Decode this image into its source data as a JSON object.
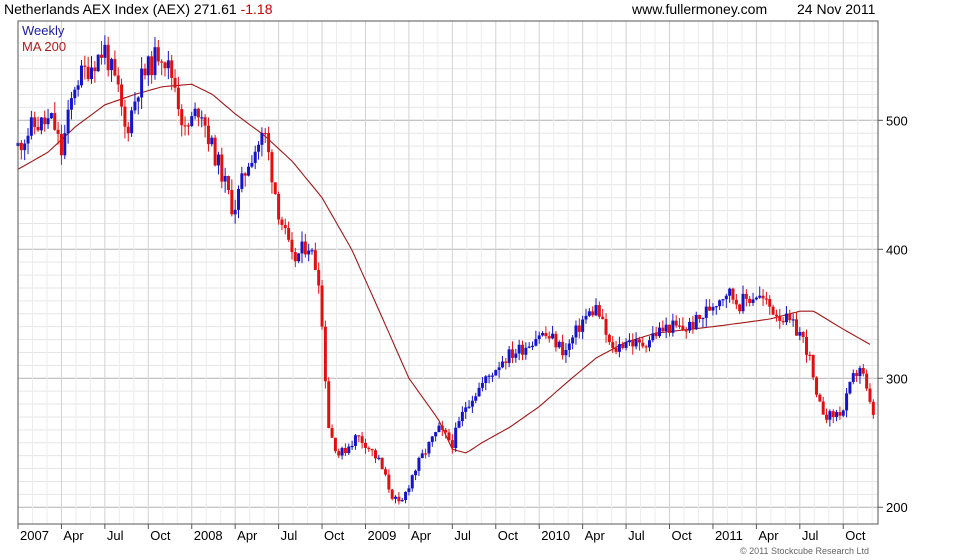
{
  "header": {
    "title": "Netherlands AEX Index (AEX) 271.61",
    "change": "-1.18",
    "site": "www.fullermoney.com",
    "date": "24 Nov 2011"
  },
  "copyright": "© 2011 Stockcube Research Ltd",
  "colors": {
    "up": "#1515c8",
    "down": "#e01010",
    "ma": "#a01818",
    "grid": "#c8c8c8",
    "legend_weekly": "#1c1caa",
    "legend_ma": "#b01c1c"
  },
  "chart_data": {
    "type": "candlestick",
    "title": "Netherlands AEX Index (AEX)",
    "last": 271.61,
    "change": -1.18,
    "legend": [
      "Weekly",
      "MA 200"
    ],
    "legend_position": "top-left",
    "grid": true,
    "x_range": [
      2007.0,
      2011.95
    ],
    "ylim": [
      187,
      577
    ],
    "y_ticks": [
      200,
      300,
      400,
      500
    ],
    "y_tick_labels": [
      "200",
      "300",
      "400",
      "500"
    ],
    "x_ticks": [
      {
        "t": 2007.0,
        "label": "2007"
      },
      {
        "t": 2007.25,
        "label": "Apr"
      },
      {
        "t": 2007.5,
        "label": "Jul"
      },
      {
        "t": 2007.75,
        "label": "Oct"
      },
      {
        "t": 2008.0,
        "label": "2008"
      },
      {
        "t": 2008.25,
        "label": "Apr"
      },
      {
        "t": 2008.5,
        "label": "Jul"
      },
      {
        "t": 2008.75,
        "label": "Oct"
      },
      {
        "t": 2009.0,
        "label": "2009"
      },
      {
        "t": 2009.25,
        "label": "Apr"
      },
      {
        "t": 2009.5,
        "label": "Jul"
      },
      {
        "t": 2009.75,
        "label": "Oct"
      },
      {
        "t": 2010.0,
        "label": "2010"
      },
      {
        "t": 2010.25,
        "label": "Apr"
      },
      {
        "t": 2010.5,
        "label": "Jul"
      },
      {
        "t": 2010.75,
        "label": "Oct"
      },
      {
        "t": 2011.0,
        "label": "2011"
      },
      {
        "t": 2011.25,
        "label": "Apr"
      },
      {
        "t": 2011.5,
        "label": "Jul"
      },
      {
        "t": 2011.75,
        "label": "Oct"
      }
    ],
    "price_path": [
      [
        2007.0,
        480
      ],
      [
        2007.08,
        495
      ],
      [
        2007.2,
        500
      ],
      [
        2007.25,
        475
      ],
      [
        2007.33,
        530
      ],
      [
        2007.5,
        555
      ],
      [
        2007.58,
        520
      ],
      [
        2007.62,
        490
      ],
      [
        2007.7,
        530
      ],
      [
        2007.82,
        555
      ],
      [
        2007.9,
        530
      ],
      [
        2007.96,
        490
      ],
      [
        2008.05,
        512
      ],
      [
        2008.1,
        485
      ],
      [
        2008.17,
        460
      ],
      [
        2008.24,
        430
      ],
      [
        2008.33,
        470
      ],
      [
        2008.42,
        490
      ],
      [
        2008.5,
        430
      ],
      [
        2008.58,
        390
      ],
      [
        2008.67,
        405
      ],
      [
        2008.73,
        380
      ],
      [
        2008.79,
        260
      ],
      [
        2008.85,
        240
      ],
      [
        2008.95,
        255
      ],
      [
        2009.0,
        250
      ],
      [
        2009.08,
        235
      ],
      [
        2009.15,
        210
      ],
      [
        2009.2,
        200
      ],
      [
        2009.27,
        225
      ],
      [
        2009.33,
        240
      ],
      [
        2009.42,
        260
      ],
      [
        2009.5,
        250
      ],
      [
        2009.58,
        280
      ],
      [
        2009.67,
        295
      ],
      [
        2009.79,
        315
      ],
      [
        2009.92,
        325
      ],
      [
        2010.0,
        335
      ],
      [
        2010.08,
        330
      ],
      [
        2010.15,
        320
      ],
      [
        2010.25,
        345
      ],
      [
        2010.33,
        355
      ],
      [
        2010.42,
        320
      ],
      [
        2010.5,
        330
      ],
      [
        2010.58,
        325
      ],
      [
        2010.67,
        335
      ],
      [
        2010.75,
        340
      ],
      [
        2010.83,
        338
      ],
      [
        2010.92,
        345
      ],
      [
        2011.0,
        358
      ],
      [
        2011.08,
        368
      ],
      [
        2011.15,
        358
      ],
      [
        2011.25,
        365
      ],
      [
        2011.33,
        355
      ],
      [
        2011.42,
        345
      ],
      [
        2011.5,
        335
      ],
      [
        2011.55,
        320
      ],
      [
        2011.6,
        280
      ],
      [
        2011.67,
        270
      ],
      [
        2011.75,
        275
      ],
      [
        2011.8,
        298
      ],
      [
        2011.85,
        310
      ],
      [
        2011.9,
        280
      ],
      [
        2011.92,
        272
      ]
    ],
    "ma200_path": [
      [
        2007.0,
        462
      ],
      [
        2007.17,
        475
      ],
      [
        2007.33,
        495
      ],
      [
        2007.5,
        512
      ],
      [
        2007.67,
        520
      ],
      [
        2007.83,
        526
      ],
      [
        2008.0,
        528
      ],
      [
        2008.12,
        520
      ],
      [
        2008.25,
        505
      ],
      [
        2008.42,
        488
      ],
      [
        2008.58,
        468
      ],
      [
        2008.75,
        440
      ],
      [
        2008.92,
        400
      ],
      [
        2009.08,
        352
      ],
      [
        2009.25,
        300
      ],
      [
        2009.42,
        268
      ],
      [
        2009.5,
        245
      ],
      [
        2009.58,
        242
      ],
      [
        2009.67,
        250
      ],
      [
        2009.83,
        262
      ],
      [
        2010.0,
        278
      ],
      [
        2010.17,
        298
      ],
      [
        2010.33,
        316
      ],
      [
        2010.5,
        328
      ],
      [
        2010.67,
        335
      ],
      [
        2011.0,
        340
      ],
      [
        2011.17,
        343
      ],
      [
        2011.33,
        346
      ],
      [
        2011.5,
        352
      ],
      [
        2011.58,
        352
      ],
      [
        2011.75,
        338
      ],
      [
        2011.92,
        325
      ]
    ]
  }
}
